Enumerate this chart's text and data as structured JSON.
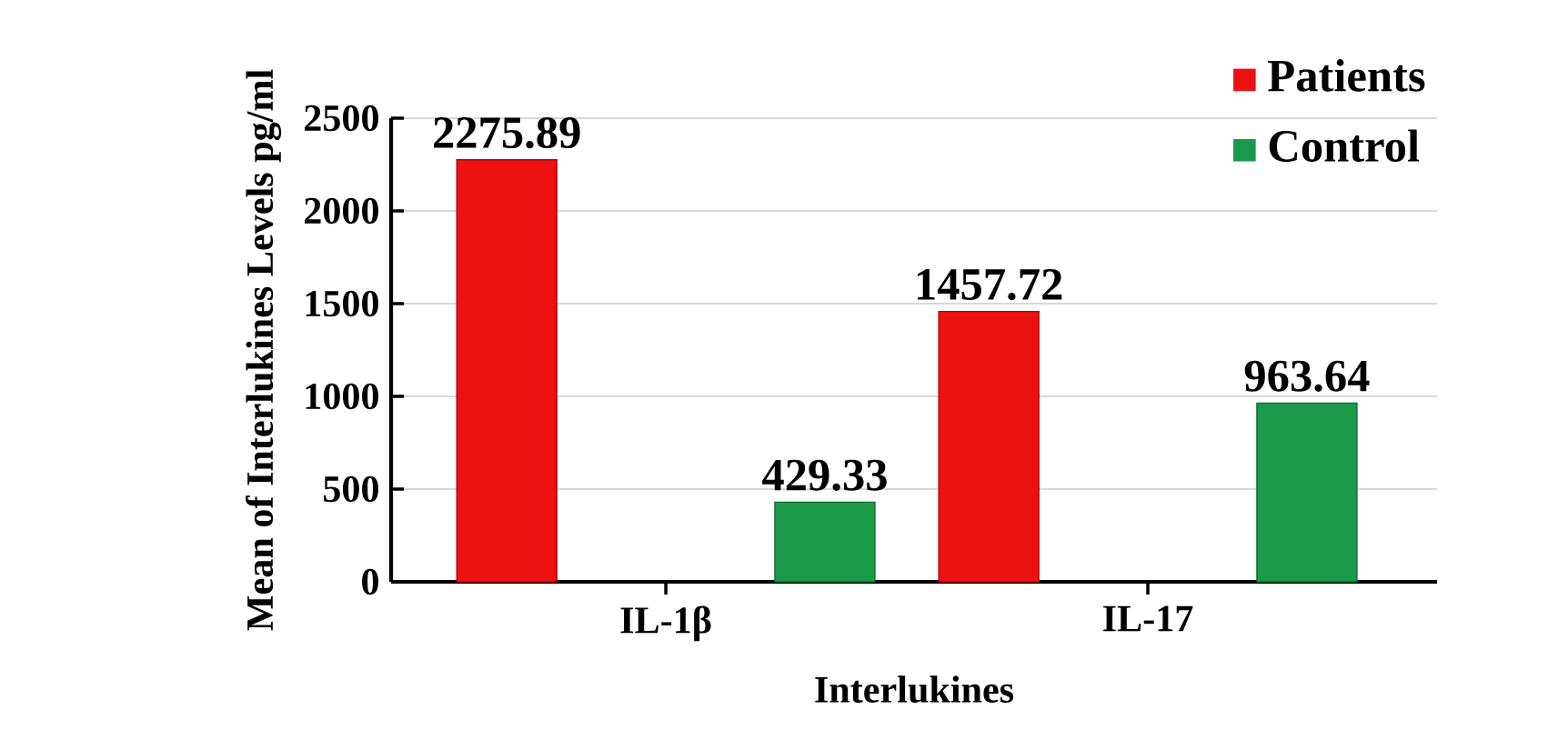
{
  "chart_data": {
    "type": "bar",
    "xlabel": "Interlukines",
    "ylabel": "Mean of Interlukines Levels pg/ml",
    "categories": [
      "IL-1β",
      "IL-17"
    ],
    "series": [
      {
        "name": "Patients",
        "color": "#ee1111",
        "values": [
          2275.89,
          1457.72
        ],
        "value_labels": [
          "2275.89",
          "1457.72"
        ]
      },
      {
        "name": "Control",
        "color": "#1a9a4a",
        "values": [
          429.33,
          963.64
        ],
        "value_labels": [
          "429.33",
          "963.64"
        ]
      }
    ],
    "ylim": [
      0,
      2500
    ],
    "yticks": [
      0,
      500,
      1000,
      1500,
      2000,
      2500
    ],
    "grid": "y",
    "legend": "top right"
  }
}
